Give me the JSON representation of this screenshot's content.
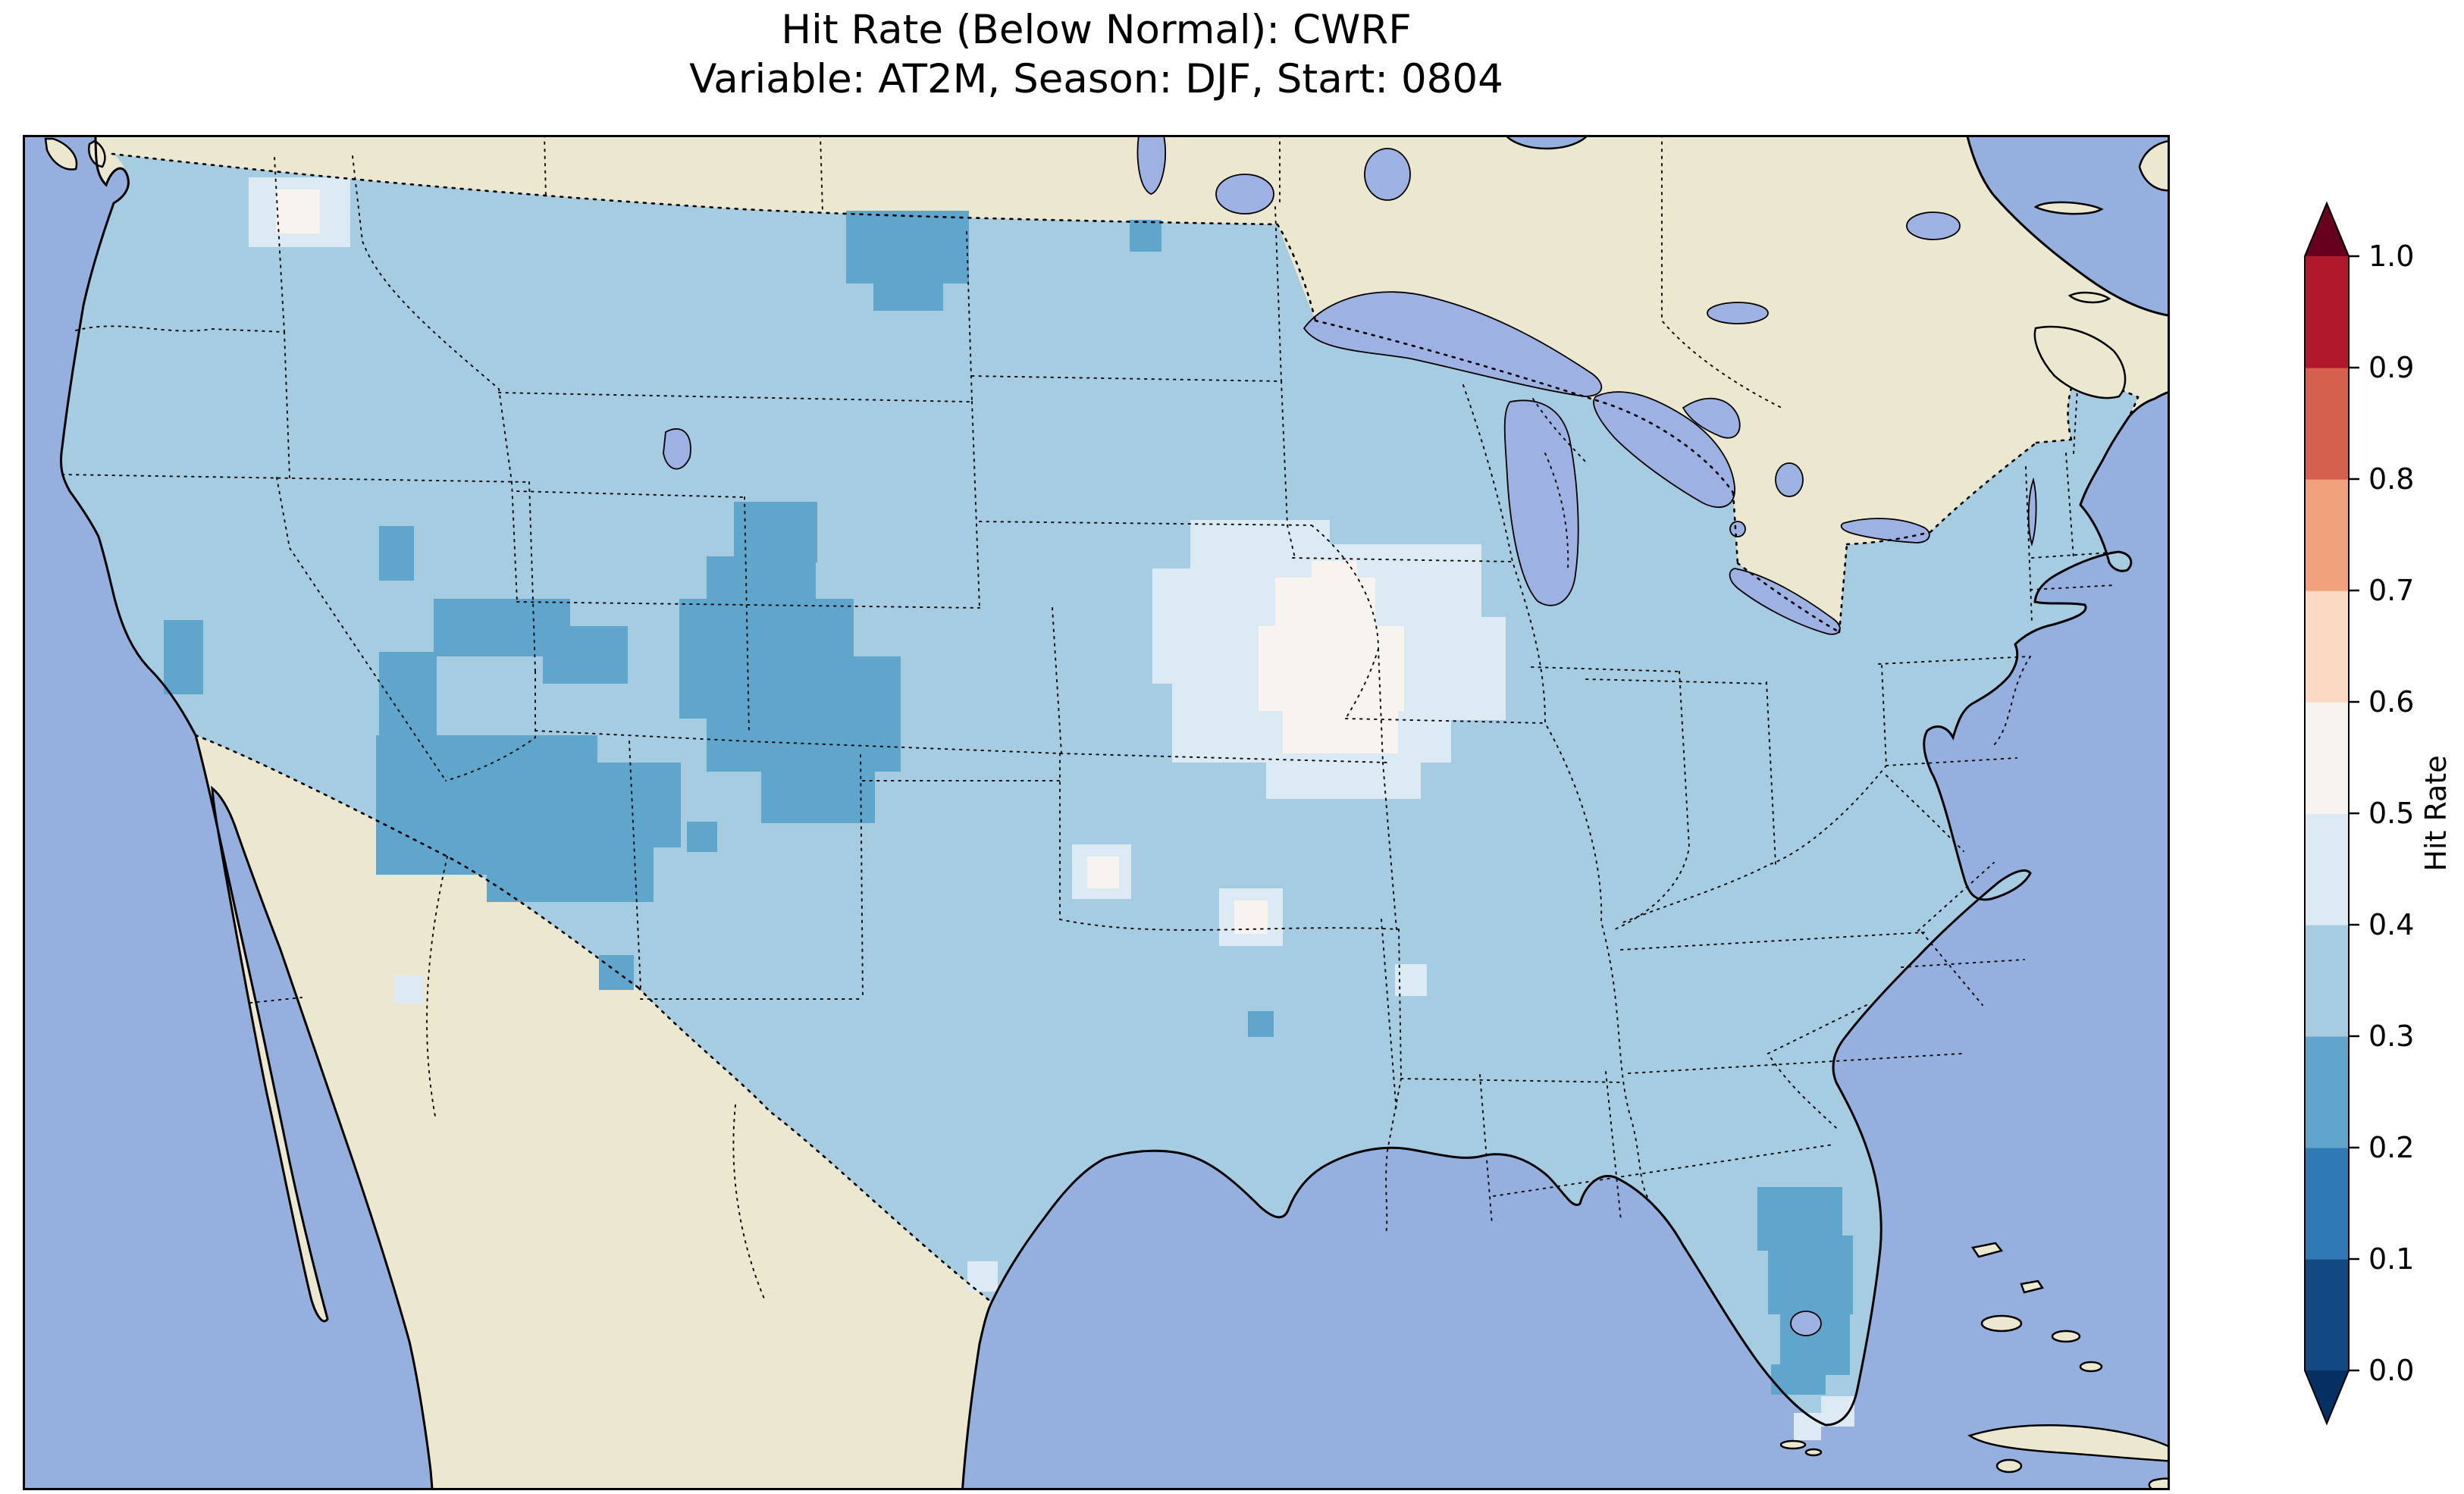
{
  "title": {
    "line1": "Hit Rate (Below Normal): CWRF",
    "line2": "Variable: AT2M, Season: DJF, Start: 0804"
  },
  "chart_data": {
    "type": "heatmap",
    "title": "Hit Rate (Below Normal): CWRF",
    "subtitle": "Variable: AT2M, Season: DJF, Start: 0804",
    "model": "CWRF",
    "metric": "Hit Rate (Below Normal)",
    "variable": "AT2M",
    "season": "DJF",
    "start": "0804",
    "region_shown": "Contiguous United States with surrounding Canada, Mexico, Gulf of Mexico and western Atlantic",
    "palette": {
      "ocean": "#95b0de",
      "land": "#ece8d0",
      "lakes": "#9db1e2",
      "coastline": "#000000"
    },
    "colorbar": {
      "label": "Hit Rate",
      "orientation": "vertical",
      "range": [
        0.0,
        1.0
      ],
      "ticks": [
        "0.0",
        "0.1",
        "0.2",
        "0.3",
        "0.4",
        "0.5",
        "0.6",
        "0.7",
        "0.8",
        "0.9",
        "1.0"
      ],
      "extend": "both",
      "extend_under": "#053061",
      "extend_over": "#67001f",
      "bins": [
        {
          "range": [
            0.0,
            0.1
          ],
          "color": "#114a80"
        },
        {
          "range": [
            0.1,
            0.2
          ],
          "color": "#2f7ab5"
        },
        {
          "range": [
            0.2,
            0.3
          ],
          "color": "#5fa5cc"
        },
        {
          "range": [
            0.3,
            0.4
          ],
          "color": "#a6cce2"
        },
        {
          "range": [
            0.4,
            0.5
          ],
          "color": "#dcebf3"
        },
        {
          "range": [
            0.5,
            0.6
          ],
          "color": "#f7f4ef"
        },
        {
          "range": [
            0.6,
            0.7
          ],
          "color": "#fcd9c2"
        },
        {
          "range": [
            0.7,
            0.8
          ],
          "color": "#f1a17c"
        },
        {
          "range": [
            0.8,
            0.9
          ],
          "color": "#d4604d"
        },
        {
          "range": [
            0.9,
            1.0
          ],
          "color": "#b2182b"
        }
      ]
    },
    "regions": [
      {
        "area": "most of the contiguous US",
        "hit_rate": "0.3-0.4"
      },
      {
        "area": "northwest Arizona / southern Utah / southern Nevada hook",
        "hit_rate": "0.2-0.3"
      },
      {
        "area": "central-eastern Utah and western Colorado",
        "hit_rate": "0.2-0.3"
      },
      {
        "area": "north-central Montana at the Canadian border",
        "hit_rate": "0.2-0.3"
      },
      {
        "area": "central Florida peninsula band",
        "hit_rate": "0.2-0.3"
      },
      {
        "area": "southern California coastal patch",
        "hit_rate": "0.2-0.3"
      },
      {
        "area": "small cells: western Nevada, southwest New Mexico, Louisiana delta, ND/MN border",
        "hit_rate": "0.2-0.3"
      },
      {
        "area": "Iowa / northern Missouri / western Illinois / Indiana fringe",
        "hit_rate": "0.4-0.5"
      },
      {
        "area": "central Illinois core",
        "hit_rate": "0.5-0.6"
      },
      {
        "area": "north-central Washington cells",
        "hit_rate": "0.4-0.6"
      },
      {
        "area": "scattered single cells: Kansas, Missouri, Tennessee, south Texas, south Florida",
        "hit_rate": "0.4-0.6"
      }
    ]
  }
}
